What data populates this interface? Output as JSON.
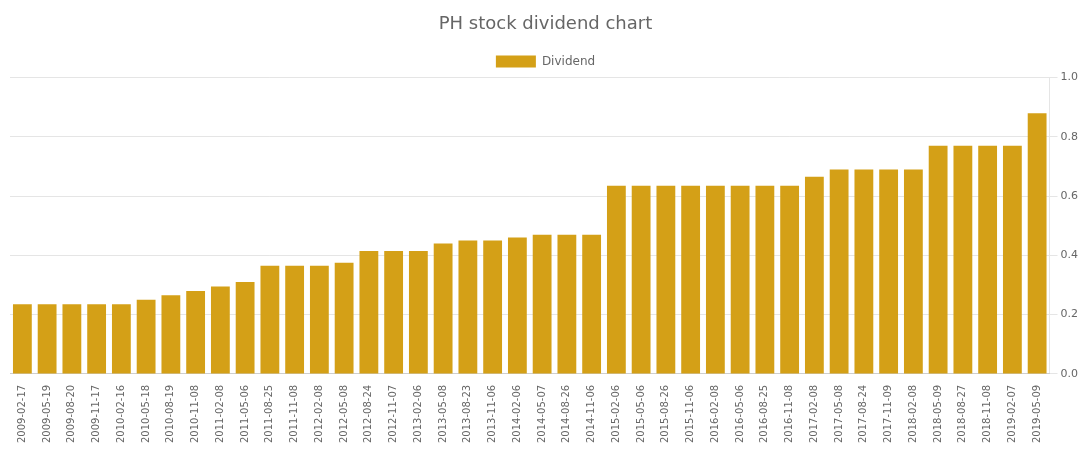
{
  "chart_data": {
    "type": "bar",
    "title": "PH stock dividend chart",
    "categories": [
      "2009-02-17",
      "2009-05-19",
      "2009-08-20",
      "2009-11-17",
      "2010-02-16",
      "2010-05-18",
      "2010-08-19",
      "2010-11-08",
      "2011-02-08",
      "2011-05-06",
      "2011-08-25",
      "2011-11-08",
      "2012-02-08",
      "2012-05-08",
      "2012-08-24",
      "2012-11-07",
      "2013-02-06",
      "2013-05-08",
      "2013-08-23",
      "2013-11-06",
      "2014-02-06",
      "2014-05-07",
      "2014-08-26",
      "2014-11-06",
      "2015-02-06",
      "2015-05-06",
      "2015-08-26",
      "2015-11-06",
      "2016-02-08",
      "2016-05-06",
      "2016-08-25",
      "2016-11-08",
      "2017-02-08",
      "2017-05-08",
      "2017-08-24",
      "2017-11-09",
      "2018-02-08",
      "2018-05-09",
      "2018-08-27",
      "2018-11-08",
      "2019-02-07",
      "2019-05-09"
    ],
    "series": [
      {
        "name": "Dividend",
        "color": "#D4A017",
        "values": [
          0.235,
          0.235,
          0.235,
          0.235,
          0.235,
          0.25,
          0.265,
          0.28,
          0.295,
          0.31,
          0.365,
          0.365,
          0.365,
          0.375,
          0.415,
          0.415,
          0.415,
          0.44,
          0.45,
          0.45,
          0.46,
          0.47,
          0.47,
          0.47,
          0.635,
          0.635,
          0.635,
          0.635,
          0.635,
          0.635,
          0.635,
          0.635,
          0.665,
          0.69,
          0.69,
          0.69,
          0.69,
          0.77,
          0.77,
          0.77,
          0.77,
          0.88
        ]
      }
    ],
    "ylim": [
      0,
      1
    ],
    "yticks": [
      {
        "value": 0,
        "label": "0.0"
      },
      0.2,
      0.4,
      0.6,
      0.8,
      {
        "value": 1,
        "label": "1.0"
      }
    ],
    "grid": true,
    "legend": "top"
  }
}
